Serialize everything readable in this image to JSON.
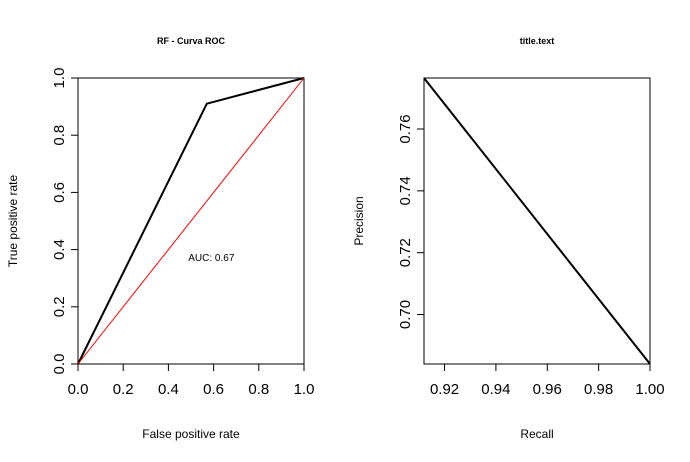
{
  "chart_data": [
    {
      "type": "line",
      "title": "RF - Curva ROC",
      "xlabel": "False positive rate",
      "ylabel": "True positive rate",
      "xlim": [
        0,
        1
      ],
      "ylim": [
        0,
        1
      ],
      "x_ticks": [
        "0.0",
        "0.2",
        "0.4",
        "0.6",
        "0.8",
        "1.0"
      ],
      "y_ticks": [
        "0.0",
        "0.2",
        "0.4",
        "0.6",
        "0.8",
        "1.0"
      ],
      "series": [
        {
          "x": [
            0,
            0.57,
            1
          ],
          "y": [
            0,
            0.91,
            1
          ],
          "color": "#000000"
        },
        {
          "x": [
            0,
            1
          ],
          "y": [
            0,
            1
          ],
          "color": "#ff0000"
        }
      ],
      "annotation": {
        "text": "AUC: 0.67",
        "x": 0.59,
        "y": 0.37
      },
      "grid": false
    },
    {
      "type": "line",
      "title": "title.text",
      "xlabel": "Recall",
      "ylabel": "Precision",
      "xlim": [
        0.912,
        1.0
      ],
      "ylim": [
        0.684,
        0.7765
      ],
      "x_ticks": [
        "0.92",
        "0.94",
        "0.96",
        "0.98",
        "1.00"
      ],
      "y_ticks": [
        "0.70",
        "0.72",
        "0.74",
        "0.76"
      ],
      "series": [
        {
          "x": [
            0.912,
            1.0
          ],
          "y": [
            0.7765,
            0.684
          ],
          "color": "#000000"
        }
      ],
      "grid": false
    }
  ]
}
